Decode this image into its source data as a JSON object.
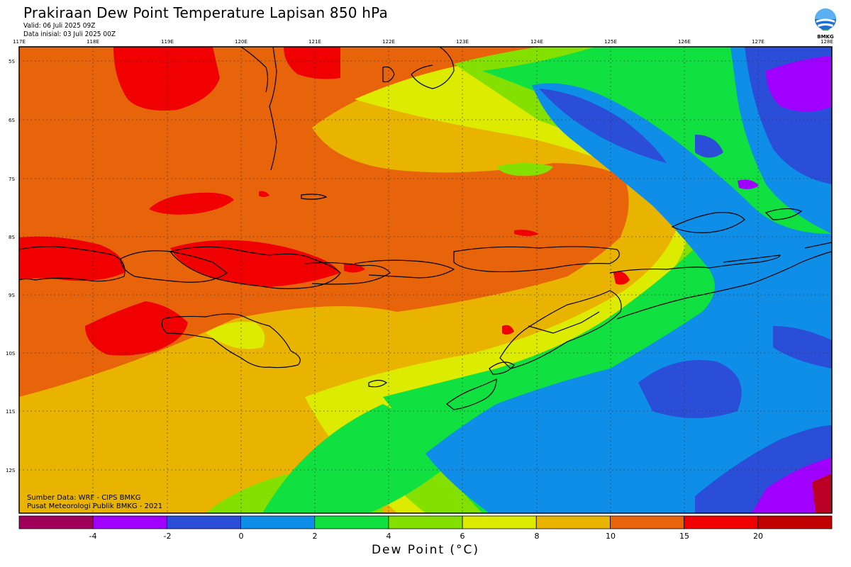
{
  "header": {
    "title": "Prakiraan Dew Point Temperature Lapisan 850 hPa",
    "valid": "Valid: 06 Juli 2025 09Z",
    "init": "Data inisial: 03 Juli 2025 00Z",
    "logo_text": "BMKG"
  },
  "map": {
    "lon_labels": [
      "117E",
      "118E",
      "119E",
      "120E",
      "121E",
      "122E",
      "123E",
      "124E",
      "125E",
      "126E",
      "127E",
      "128E"
    ],
    "lat_labels": [
      "5S",
      "6S",
      "7S",
      "8S",
      "9S",
      "10S",
      "11S",
      "12S"
    ],
    "credits": {
      "source": "Sumber Data: WRF - CIPS BMKG",
      "org": "Pusat Meteorologi Publik BMKG - 2021"
    }
  },
  "legend": {
    "title": "Dew Point (°C)",
    "tick_labels": [
      "-4",
      "-2",
      "0",
      "2",
      "4",
      "6",
      "8",
      "10",
      "15",
      "20"
    ],
    "colors": [
      "#a0005a",
      "#a000ff",
      "#2a4ed8",
      "#0f8ee8",
      "#10e040",
      "#84e000",
      "#dceb00",
      "#e8b400",
      "#e8640a",
      "#f00000",
      "#c00000"
    ]
  }
}
